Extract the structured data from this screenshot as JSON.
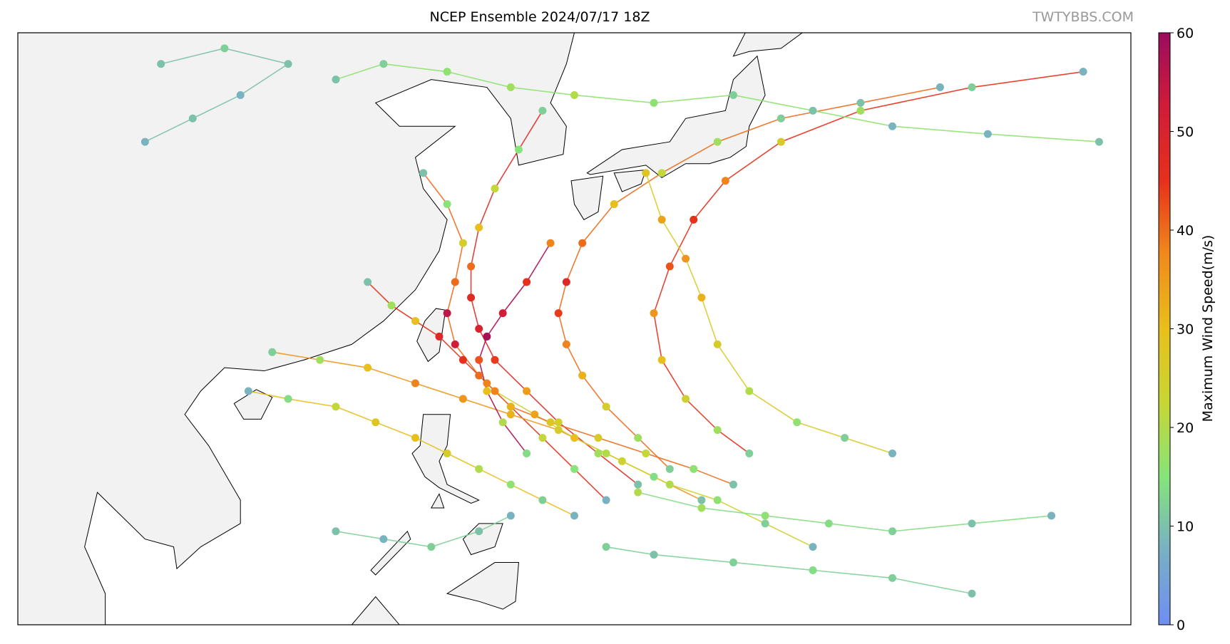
{
  "chart_data": {
    "type": "track-map",
    "title": "NCEP Ensemble 2024/07/17 18Z",
    "watermark": "TWTYBBS.COM",
    "colorbar_label": "Maximum Wind Speed(m/s)",
    "clim": [
      0,
      60
    ],
    "cticks": [
      0,
      10,
      20,
      30,
      40,
      50,
      60
    ],
    "colormap": [
      "#6f8ef2",
      "#78b0c4",
      "#86e47a",
      "#c8d634",
      "#e8bf1c",
      "#f08a1c",
      "#e6301c",
      "#d01c38",
      "#9a0c5e"
    ],
    "xlim": [
      95,
      165
    ],
    "ylim": [
      5,
      43
    ],
    "series": [
      {
        "lon": [
          132,
          130,
          128,
          126,
          124.5,
          123,
          121.5,
          120,
          118.5,
          117
        ],
        "lat": [
          13,
          15,
          17,
          19,
          20.5,
          22,
          23.5,
          24.5,
          25.5,
          27
        ],
        "values": [
          8,
          15,
          22,
          30,
          38,
          45,
          48,
          30,
          18,
          10
        ]
      },
      {
        "lon": [
          134,
          131.5,
          129,
          127,
          125,
          124,
          123.5,
          123.5,
          124,
          125,
          126.5,
          128
        ],
        "lat": [
          14,
          16,
          18,
          20,
          22,
          24,
          26,
          28,
          30.5,
          33,
          35.5,
          38
        ],
        "values": [
          10,
          18,
          25,
          35,
          44,
          50,
          47,
          40,
          30,
          22,
          15,
          12
        ]
      },
      {
        "lon": [
          136,
          134,
          132,
          130.5,
          129.5,
          129,
          129.5,
          130.5,
          132.5,
          135.5,
          139,
          143,
          148,
          153
        ],
        "lat": [
          15,
          17,
          19,
          21,
          23,
          25,
          27,
          29.5,
          32,
          34,
          36,
          37.5,
          38.5,
          39.5
        ],
        "values": [
          12,
          18,
          25,
          32,
          38,
          44,
          48,
          40,
          30,
          22,
          18,
          12,
          10,
          8
        ]
      },
      {
        "lon": [
          138,
          135,
          132,
          129,
          126,
          123,
          120,
          117,
          114,
          111
        ],
        "lat": [
          13,
          14.5,
          16,
          17.5,
          18.5,
          19.5,
          20.5,
          21.5,
          22,
          22.5
        ],
        "values": [
          10,
          14,
          20,
          26,
          32,
          36,
          38,
          30,
          18,
          12
        ]
      },
      {
        "lon": [
          130,
          128,
          126,
          124,
          122,
          120,
          117.5,
          115,
          112,
          109.5
        ],
        "lat": [
          12,
          13,
          14,
          15,
          16,
          17,
          18,
          19,
          19.5,
          20
        ],
        "values": [
          8,
          12,
          16,
          20,
          26,
          30,
          28,
          22,
          14,
          8
        ]
      },
      {
        "lon": [
          141,
          139,
          137,
          135.5,
          135,
          136,
          137.5,
          139.5,
          143,
          148,
          155,
          162
        ],
        "lat": [
          16,
          17.5,
          19.5,
          22,
          25,
          28,
          31,
          33.5,
          36,
          38,
          39.5,
          40.5
        ],
        "values": [
          12,
          18,
          24,
          30,
          36,
          42,
          45,
          38,
          26,
          18,
          12,
          8
        ]
      },
      {
        "lon": [
          145,
          142,
          139,
          136,
          133,
          130,
          127.5,
          125
        ],
        "lat": [
          10,
          11.5,
          13,
          14,
          15.5,
          17,
          18.5,
          20
        ],
        "values": [
          8,
          12,
          16,
          20,
          24,
          30,
          34,
          38
        ]
      },
      {
        "lon": [
          140,
          137.5,
          134.5,
          131.5,
          128.5,
          126,
          124,
          122.5,
          122,
          122.5,
          123,
          122,
          120.5
        ],
        "lat": [
          14,
          15,
          16,
          17,
          18,
          19,
          21,
          23,
          25,
          27,
          29.5,
          32,
          34
        ],
        "values": [
          10,
          16,
          22,
          26,
          28,
          32,
          40,
          52,
          55,
          40,
          25,
          15,
          10
        ]
      },
      {
        "lon": [
          160,
          155,
          150,
          146,
          142,
          138,
          134
        ],
        "lat": [
          12,
          11.5,
          11,
          11.5,
          12,
          12.5,
          13.5
        ],
        "values": [
          8,
          10,
          12,
          14,
          16,
          18,
          20
        ]
      },
      {
        "lon": [
          150,
          147,
          144,
          141,
          139,
          138,
          137,
          135.5,
          134.5
        ],
        "lat": [
          16,
          17,
          18,
          20,
          23,
          26,
          28.5,
          31,
          34
        ],
        "values": [
          8,
          12,
          16,
          20,
          26,
          32,
          36,
          34,
          28
        ]
      },
      {
        "lon": [
          126,
          124,
          121,
          118,
          115
        ],
        "lat": [
          12,
          11,
          10,
          10.5,
          11
        ],
        "values": [
          8,
          10,
          12,
          8,
          10
        ]
      },
      {
        "lon": [
          115,
          118,
          122,
          126,
          130,
          135,
          140,
          145,
          150,
          156,
          163
        ],
        "lat": [
          40,
          41,
          40.5,
          39.5,
          39,
          38.5,
          39,
          38,
          37,
          36.5,
          36
        ],
        "values": [
          10,
          12,
          16,
          18,
          20,
          16,
          12,
          10,
          8,
          8,
          10
        ]
      },
      {
        "lon": [
          155,
          150,
          145,
          140,
          135,
          132
        ],
        "lat": [
          7,
          8,
          8.5,
          9,
          9.5,
          10
        ],
        "values": [
          10,
          12,
          14,
          12,
          10,
          12
        ]
      },
      {
        "lon": [
          127,
          125.5,
          124.5,
          124,
          124.5,
          125.5,
          127,
          128.5
        ],
        "lat": [
          16,
          18,
          20,
          22,
          23.5,
          25,
          27,
          29.5
        ],
        "values": [
          14,
          20,
          30,
          42,
          58,
          52,
          45,
          38
        ]
      },
      {
        "lon": [
          103,
          106,
          109,
          112,
          108,
          104
        ],
        "lat": [
          36,
          37.5,
          39,
          41,
          42,
          41
        ],
        "values": [
          8,
          10,
          8,
          10,
          12,
          10
        ]
      }
    ]
  }
}
